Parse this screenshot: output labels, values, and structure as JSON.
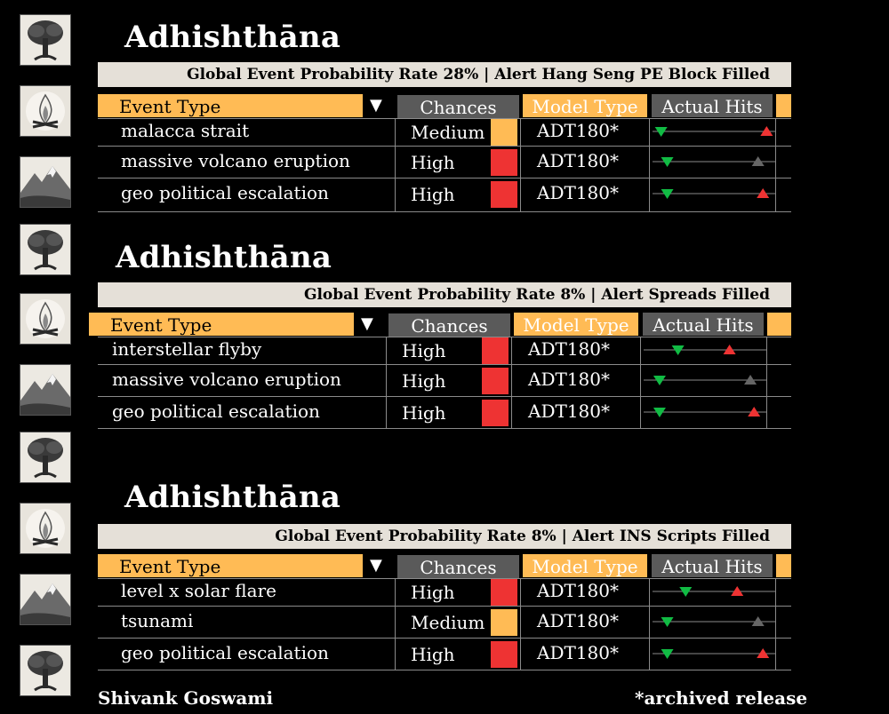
{
  "colors": {
    "orange": "#ffbb55",
    "grey": "#5a5a5a",
    "banner": "#e5e0d8",
    "red": "#ee3333",
    "green": "#11bb44",
    "dark_triangle": "#666666"
  },
  "thumbnails": [
    "tree-icon",
    "bonfire-icon",
    "mountain-icon",
    "tree-icon",
    "bonfire-icon",
    "mountain-icon",
    "tree-icon",
    "bonfire-icon",
    "mountain-icon",
    "tree-icon"
  ],
  "headers": {
    "event_type": "Event Type",
    "chances": "Chances",
    "model_type": "Model Type",
    "actual_hits": "Actual Hits"
  },
  "panels": [
    {
      "title": "Adhishthāna",
      "banner": "Global Event Probability Rate 28% | Alert Hang Seng PE Block Filled",
      "rows": [
        {
          "event": "malacca strait",
          "chance": "Medium",
          "level": "medium",
          "model": "ADT180*",
          "green": 0.07,
          "up": 0.93,
          "up_color": "red"
        },
        {
          "event": "massive volcano eruption",
          "chance": "High",
          "level": "high",
          "model": "ADT180*",
          "green": 0.12,
          "up": 0.86,
          "up_color": "dark"
        },
        {
          "event": "geo political escalation",
          "chance": "High",
          "level": "high",
          "model": "ADT180*",
          "green": 0.12,
          "up": 0.9,
          "up_color": "red"
        }
      ]
    },
    {
      "title": "Adhishthāna",
      "banner": "Global Event Probability Rate 8% | Alert Spreads Filled",
      "rows": [
        {
          "event": "interstellar flyby",
          "chance": "High",
          "level": "high",
          "model": "ADT180*",
          "green": 0.28,
          "up": 0.7,
          "up_color": "red"
        },
        {
          "event": "massive volcano eruption",
          "chance": "High",
          "level": "high",
          "model": "ADT180*",
          "green": 0.13,
          "up": 0.87,
          "up_color": "dark"
        },
        {
          "event": "geo political escalation",
          "chance": "High",
          "level": "high",
          "model": "ADT180*",
          "green": 0.13,
          "up": 0.9,
          "up_color": "red"
        }
      ]
    },
    {
      "title": "Adhishthāna",
      "banner": "Global Event Probability Rate 8% | Alert INS Scripts Filled",
      "rows": [
        {
          "event": "level x solar flare",
          "chance": "High",
          "level": "high",
          "model": "ADT180*",
          "green": 0.27,
          "up": 0.69,
          "up_color": "red"
        },
        {
          "event": "tsunami",
          "chance": "Medium",
          "level": "medium",
          "model": "ADT180*",
          "green": 0.12,
          "up": 0.86,
          "up_color": "dark"
        },
        {
          "event": "geo political escalation",
          "chance": "High",
          "level": "high",
          "model": "ADT180*",
          "green": 0.12,
          "up": 0.9,
          "up_color": "red"
        }
      ]
    }
  ],
  "footer": {
    "author": "Shivank Goswami",
    "note": "*archived release"
  }
}
